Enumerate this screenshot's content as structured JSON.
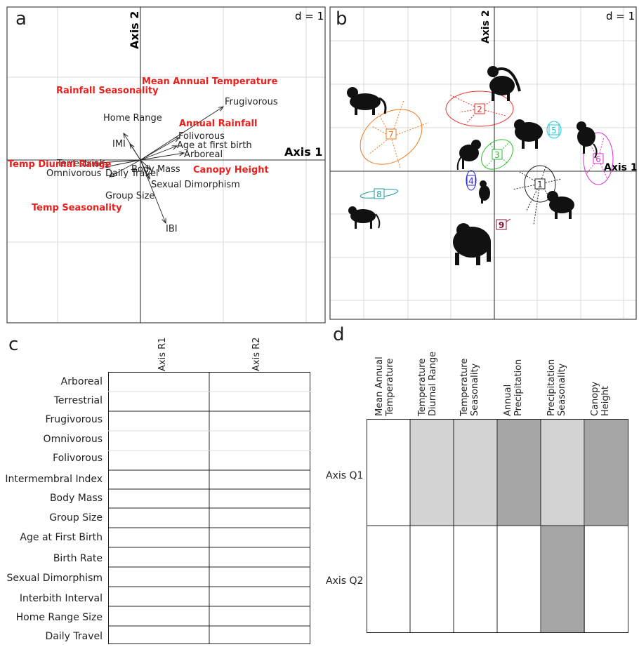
{
  "panels": {
    "a": {
      "letter": "a",
      "scale": "d = 1",
      "axis1": "Axis 1",
      "axis2": "Axis 2",
      "env_labels": [
        "Rainfall Seasonality",
        "Mean Annual Temperature",
        "Annual Rainfall",
        "Canopy Height",
        "Temp Diurnal Range",
        "Temp Seasonality"
      ],
      "trait_labels": [
        "Frugivorous",
        "Home Range",
        "IMI",
        "Folivorous",
        "Age at first birth",
        "Arboreal",
        "Terrestrial",
        "Omnivorous",
        "Daily Travel",
        "Group Size",
        "Body Mass",
        "Sexual Dimorphism",
        "IBI"
      ]
    },
    "b": {
      "letter": "b",
      "scale": "d = 1",
      "axis1": "Axis 1",
      "axis2": "Axis 2",
      "groups": [
        {
          "id": "1",
          "color": "#222222"
        },
        {
          "id": "2",
          "color": "#e8302a"
        },
        {
          "id": "3",
          "color": "#2bbd2b"
        },
        {
          "id": "4",
          "color": "#2a2ad6"
        },
        {
          "id": "5",
          "color": "#1fc8d8"
        },
        {
          "id": "6",
          "color": "#e02bd0"
        },
        {
          "id": "7",
          "color": "#f07a1e"
        },
        {
          "id": "8",
          "color": "#1f9a9a"
        },
        {
          "id": "9",
          "color": "#8a1038"
        }
      ]
    },
    "c": {
      "letter": "c",
      "columns": [
        "Axis R1",
        "Axis R2"
      ],
      "rows": [
        "Arboreal",
        "Terrestrial",
        "Frugivorous",
        "Omnivorous",
        "Folivorous",
        "Intermembral Index",
        "Body Mass",
        "Group Size",
        "Age at First Birth",
        "Birth Rate",
        "Sexual Dimorphism",
        "Interbith Interval",
        "Home Range Size",
        "Daily Travel"
      ]
    },
    "d": {
      "letter": "d",
      "columns": [
        [
          "Mean Annual",
          "Temperature"
        ],
        [
          "Temperature",
          "Diurnal Range"
        ],
        [
          "Temperature",
          "Seasonality"
        ],
        [
          "Annual",
          "Precipitation"
        ],
        [
          "Precipitation",
          "Seasonality"
        ],
        [
          "Canopy",
          "Height"
        ]
      ],
      "rows": [
        "Axis Q1",
        "Axis Q2"
      ],
      "shading": [
        [
          "#ffffff",
          "#d3d3d3",
          "#d3d3d3",
          "#a6a6a6",
          "#d3d3d3",
          "#a6a6a6"
        ],
        [
          "#ffffff",
          "#ffffff",
          "#ffffff",
          "#ffffff",
          "#a6a6a6",
          "#ffffff"
        ]
      ]
    }
  }
}
